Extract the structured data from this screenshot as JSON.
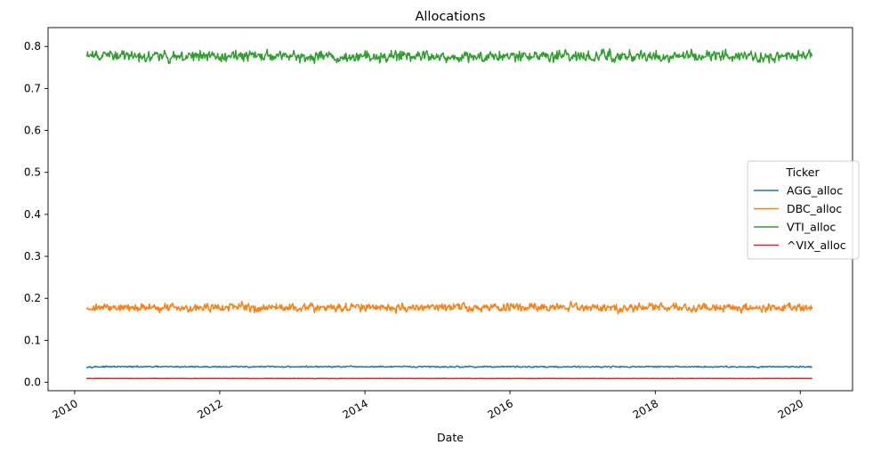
{
  "chart_data": {
    "type": "line",
    "title": "Allocations",
    "xlabel": "Date",
    "ylabel": "",
    "x_range": [
      "2010-03-01",
      "2020-03-01"
    ],
    "xlim": [
      "2009-08-20",
      "2020-09-20"
    ],
    "ylim": [
      -0.02,
      0.845
    ],
    "x_ticks": [
      "2010",
      "2012",
      "2014",
      "2016",
      "2018",
      "2020"
    ],
    "y_ticks": [
      "0.0",
      "0.1",
      "0.2",
      "0.3",
      "0.4",
      "0.5",
      "0.6",
      "0.7",
      "0.8"
    ],
    "grid": false,
    "legend": {
      "title": "Ticker",
      "placement": "center-right"
    },
    "series": [
      {
        "name": "AGG_alloc",
        "color": "#1f77b4",
        "mean": 0.037,
        "min": 0.033,
        "max": 0.041
      },
      {
        "name": "DBC_alloc",
        "color": "#ff7f0e",
        "mean": 0.178,
        "min": 0.155,
        "max": 0.212
      },
      {
        "name": "VTI_alloc",
        "color": "#2ca02c",
        "mean": 0.777,
        "min": 0.738,
        "max": 0.808
      },
      {
        "name": "^VIX_alloc",
        "color": "#d62728",
        "mean": 0.009,
        "min": 0.008,
        "max": 0.01
      }
    ]
  }
}
